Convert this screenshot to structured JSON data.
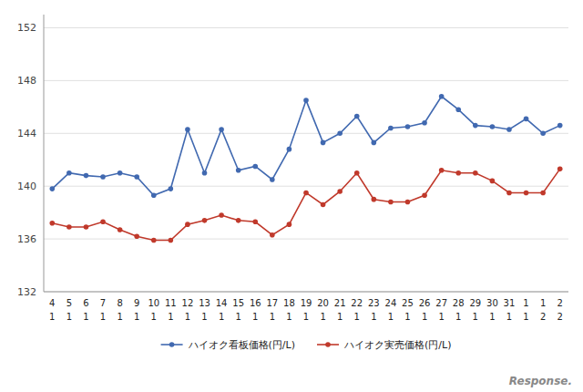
{
  "chart_data": {
    "type": "line",
    "categories": [
      "4\n1",
      "5\n1",
      "6\n1",
      "7\n1",
      "8\n1",
      "9\n1",
      "10\n1",
      "11\n1",
      "12\n1",
      "13\n1",
      "14\n1",
      "15\n1",
      "16\n1",
      "17\n1",
      "18\n1",
      "19\n1",
      "20\n1",
      "21\n1",
      "22\n1",
      "23\n1",
      "24\n1",
      "25\n1",
      "26\n1",
      "27\n1",
      "28\n1",
      "29\n1",
      "30\n1",
      "31\n1",
      "1\n1",
      "1\n2",
      "2\n2"
    ],
    "series": [
      {
        "name": "ハイオク看板価格(円/L)",
        "color": "#4169b0",
        "marker": "circle",
        "values": [
          139.8,
          141.0,
          140.8,
          140.7,
          141.0,
          140.7,
          139.3,
          139.8,
          144.3,
          141.0,
          144.3,
          141.2,
          141.5,
          140.5,
          142.8,
          146.5,
          143.3,
          144.0,
          145.3,
          143.3,
          144.4,
          144.5,
          144.8,
          146.8,
          145.8,
          144.6,
          144.5,
          144.3,
          145.1,
          144.0,
          144.6
        ]
      },
      {
        "name": "ハイオク実売価格(円/L)",
        "color": "#c0392b",
        "marker": "circle",
        "values": [
          137.2,
          136.9,
          136.9,
          137.3,
          136.7,
          136.2,
          135.9,
          135.9,
          137.1,
          137.4,
          137.8,
          137.4,
          137.3,
          136.3,
          137.1,
          139.5,
          138.6,
          139.6,
          141.0,
          139.0,
          138.8,
          138.8,
          139.3,
          141.2,
          141.0,
          141.0,
          140.4,
          139.5,
          139.5,
          139.5,
          141.3
        ]
      }
    ],
    "ylim": [
      132,
      153
    ],
    "yticks": [
      132,
      136,
      140,
      144,
      148,
      152
    ],
    "grid": true,
    "legend": "bottom",
    "annotations": [
      "Response."
    ]
  }
}
